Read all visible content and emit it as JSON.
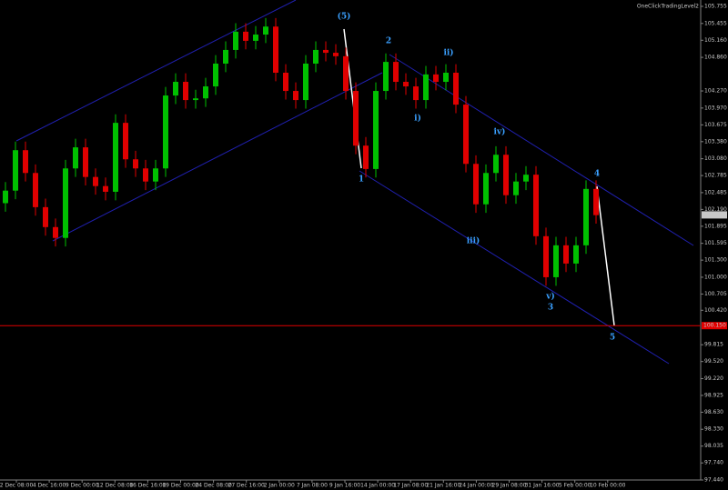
{
  "chart_data": {
    "type": "candlestick",
    "title": "OneClickTradingLevel2",
    "up_color": "#00c000",
    "down_color": "#e00000",
    "open": [
      102.3,
      102.52,
      103.23,
      102.83,
      102.23,
      101.88,
      101.69,
      102.91,
      103.28,
      102.76,
      102.6,
      102.5,
      103.71,
      103.07,
      102.91,
      102.68,
      102.91,
      104.19,
      104.43,
      104.11,
      104.14,
      104.35,
      104.75,
      104.99,
      105.31,
      105.15,
      105.26,
      105.4,
      104.59,
      104.27,
      104.11,
      104.75,
      104.99,
      104.94,
      104.88,
      104.27,
      103.31,
      102.9,
      104.27,
      104.78,
      104.43,
      104.35,
      104.11,
      104.56,
      104.43,
      104.59,
      104.03,
      102.99,
      102.28,
      102.83,
      103.15,
      102.44,
      102.68,
      102.8,
      101.72,
      101.0,
      101.56,
      101.24,
      101.56,
      102.55
    ],
    "high": [
      102.67,
      103.38,
      103.38,
      102.98,
      102.38,
      102.03,
      103.06,
      103.43,
      103.43,
      102.91,
      102.75,
      103.86,
      103.86,
      103.22,
      103.06,
      103.06,
      104.34,
      104.58,
      104.58,
      104.29,
      104.5,
      104.9,
      105.14,
      105.46,
      105.46,
      105.41,
      105.55,
      105.55,
      104.74,
      104.42,
      104.9,
      105.14,
      105.14,
      105.09,
      105.03,
      104.42,
      103.46,
      104.42,
      104.93,
      104.93,
      104.58,
      104.5,
      104.71,
      104.71,
      104.74,
      104.74,
      104.18,
      103.14,
      102.98,
      103.3,
      103.3,
      102.83,
      102.95,
      102.95,
      101.87,
      101.71,
      101.71,
      101.71,
      102.7,
      102.7
    ],
    "low": [
      102.15,
      102.37,
      102.68,
      102.08,
      101.73,
      101.54,
      101.54,
      102.76,
      102.61,
      102.45,
      102.35,
      102.35,
      102.92,
      102.76,
      102.53,
      102.53,
      102.76,
      104.04,
      103.96,
      103.96,
      103.99,
      104.2,
      104.6,
      104.84,
      105.0,
      105.0,
      105.11,
      104.44,
      104.12,
      103.96,
      103.96,
      104.6,
      104.79,
      104.73,
      104.12,
      103.16,
      102.75,
      102.75,
      104.12,
      104.28,
      104.2,
      103.96,
      103.96,
      104.28,
      104.28,
      103.88,
      102.84,
      102.13,
      102.13,
      102.68,
      102.29,
      102.29,
      102.53,
      101.57,
      100.85,
      100.85,
      101.09,
      101.09,
      101.41,
      101.94
    ],
    "close": [
      102.52,
      103.23,
      102.83,
      102.23,
      101.88,
      101.69,
      102.91,
      103.28,
      102.76,
      102.6,
      102.5,
      103.71,
      103.07,
      102.91,
      102.68,
      102.91,
      104.19,
      104.43,
      104.11,
      104.14,
      104.35,
      104.75,
      104.99,
      105.31,
      105.15,
      105.26,
      105.4,
      104.59,
      104.27,
      104.11,
      104.75,
      104.99,
      104.94,
      104.88,
      104.27,
      103.31,
      102.9,
      104.27,
      104.78,
      104.43,
      104.35,
      104.11,
      104.56,
      104.43,
      104.59,
      104.03,
      102.99,
      102.28,
      102.83,
      103.15,
      102.44,
      102.68,
      102.8,
      101.72,
      101.0,
      101.56,
      101.24,
      101.56,
      102.55,
      102.09
    ],
    "ylim": [
      97.44,
      105.755
    ],
    "yticks": [
      105.755,
      105.455,
      {
        "value": 105.16,
        "label": "105.160"
      },
      {
        "value": 104.86,
        "label": "104.860"
      },
      {
        "value": 104.27,
        "label": "104.270"
      },
      {
        "value": 103.97,
        "label": "103.970"
      },
      103.675,
      {
        "value": 103.38,
        "label": "103.380"
      },
      {
        "value": 103.08,
        "label": "103.080"
      },
      102.785,
      102.485,
      {
        "value": 102.19,
        "label": "102.190"
      },
      101.895,
      101.595,
      {
        "value": 101.3,
        "label": "101.300"
      },
      {
        "value": 101.0,
        "label": "101.000"
      },
      100.705,
      {
        "value": 100.42,
        "label": "100.420"
      },
      99.815,
      {
        "value": 99.52,
        "label": "99.520"
      },
      {
        "value": 99.22,
        "label": "99.220"
      },
      98.925,
      {
        "value": 98.63,
        "label": "98.630"
      },
      {
        "value": 98.33,
        "label": "98.330"
      },
      98.035,
      {
        "value": 97.74,
        "label": "97.740"
      },
      {
        "value": 97.44,
        "label": "97.440"
      }
    ],
    "xticks": [
      "2 Dec 08:00",
      "4 Dec 16:00",
      "9 Dec 00:00",
      "12 Dec 08:00",
      "16 Dec 16:00",
      "19 Dec 00:00",
      "24 Dec 08:00",
      "27 Dec 16:00",
      "2 Jan 00:00",
      "7 Jan 08:00",
      "9 Jan 16:00",
      "14 Jan 00:00",
      "17 Jan 08:00",
      "21 Jan 16:00",
      "24 Jan 00:00",
      "29 Jan 08:00",
      "31 Jan 16:00",
      "5 Feb 00:00",
      "10 Feb 00:00"
    ],
    "current_price": 102.094,
    "hline": {
      "value": 100.15,
      "label": "100.150",
      "color": "#e00000"
    },
    "annotations": [
      "(5)",
      "2",
      "ii)",
      "i)",
      "1",
      "iv)",
      "iii)",
      "4",
      "v)",
      "3",
      "5"
    ]
  }
}
